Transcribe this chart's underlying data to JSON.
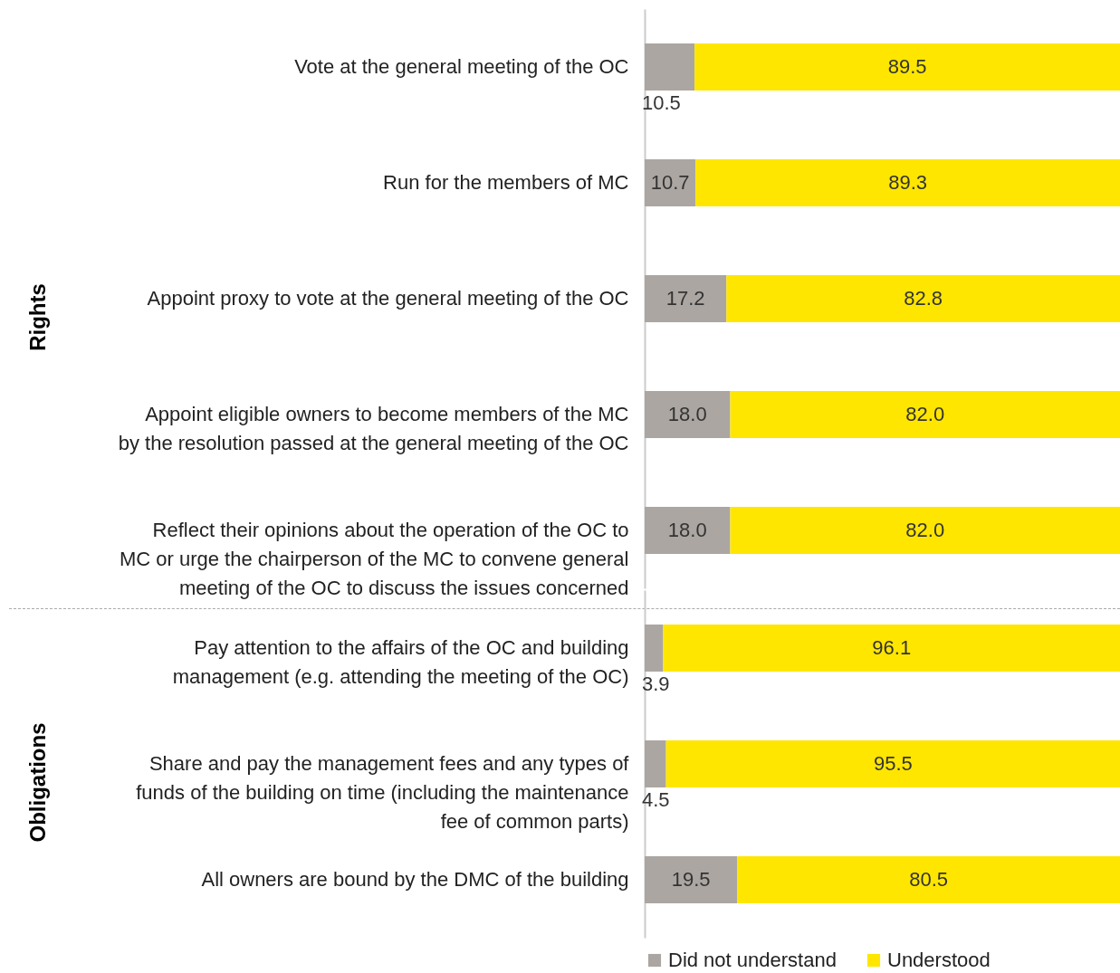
{
  "chart_data": [
    {
      "type": "bar",
      "orientation": "horizontal",
      "stacked": true,
      "ylabel": "Rights",
      "data_labels": true,
      "xlim": [
        0,
        100
      ],
      "categories": [
        "Vote at the general meeting of the OC",
        "Run for the members of MC",
        "Appoint proxy to vote at the general meeting of the OC",
        "Appoint eligible owners to become members of the MC\nby the resolution passed at the general meeting of the OC",
        "Reflect their opinions about the operation of the OC to\nMC or urge the chairperson of the MC to convene general\nmeeting of the OC to discuss the issues concerned"
      ],
      "series": [
        {
          "color": "#aba6a2",
          "values": [
            10.5,
            10.7,
            17.2,
            18.0,
            18.0
          ],
          "value_labels": [
            "10.5",
            "10.7",
            "17.2",
            "18.0",
            "18.0"
          ]
        },
        {
          "color": "#ffe600",
          "values": [
            89.5,
            89.3,
            82.8,
            82.0,
            82.0
          ],
          "value_labels": [
            "89.5",
            "89.3",
            "82.8",
            "82.0",
            "82.0"
          ]
        }
      ]
    },
    {
      "type": "bar",
      "orientation": "horizontal",
      "stacked": true,
      "ylabel": "Obligations",
      "data_labels": true,
      "xlim": [
        0,
        100
      ],
      "legend": "bottom",
      "categories": [
        "Pay attention to the affairs of the OC and building\nmanagement (e.g. attending the meeting of the OC)",
        "Share and pay the management fees and any types of\nfunds of the building on time (including the maintenance\nfee of common parts)",
        "All owners are bound by the DMC of the building"
      ],
      "series": [
        {
          "name": "Did not understand",
          "color": "#aba6a2",
          "values": [
            3.9,
            4.5,
            19.5
          ],
          "value_labels": [
            "3.9",
            "4.5",
            "19.5"
          ]
        },
        {
          "name": "Understood",
          "color": "#ffe600",
          "values": [
            96.1,
            95.5,
            80.5
          ],
          "value_labels": [
            "96.1",
            "95.5",
            "80.5"
          ]
        }
      ]
    }
  ]
}
